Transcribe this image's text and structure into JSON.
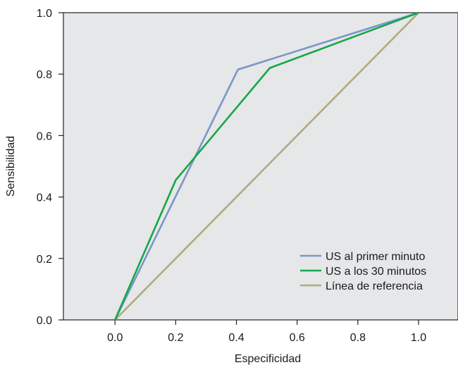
{
  "chart_data": {
    "type": "line",
    "title": "",
    "xlabel": "Especificidad",
    "ylabel": "Sensibilidad",
    "xlim": [
      -0.17,
      1.13
    ],
    "ylim": [
      0.0,
      1.0
    ],
    "x_ticks": [
      "0.0",
      "0.2",
      "0.4",
      "0.6",
      "0.8",
      "1.0"
    ],
    "y_ticks": [
      "0.0",
      "0.2",
      "0.4",
      "0.6",
      "0.8",
      "1.0"
    ],
    "grid": false,
    "legend_position": "bottom-right",
    "series": [
      {
        "name": "US al primer minuto",
        "color": "#7b96c8",
        "points": [
          [
            0.0,
            0.0
          ],
          [
            0.405,
            0.815
          ],
          [
            1.0,
            1.0
          ]
        ]
      },
      {
        "name": "US a los 30 minutos",
        "color": "#14a84a",
        "points": [
          [
            0.0,
            0.0
          ],
          [
            0.2,
            0.455
          ],
          [
            0.51,
            0.82
          ],
          [
            1.0,
            1.0
          ]
        ]
      },
      {
        "name": "Línea de referencia",
        "color": "#b0aa7e",
        "points": [
          [
            0.0,
            0.0
          ],
          [
            1.0,
            1.0
          ]
        ]
      }
    ],
    "plot_background": "#e6e7e9"
  }
}
